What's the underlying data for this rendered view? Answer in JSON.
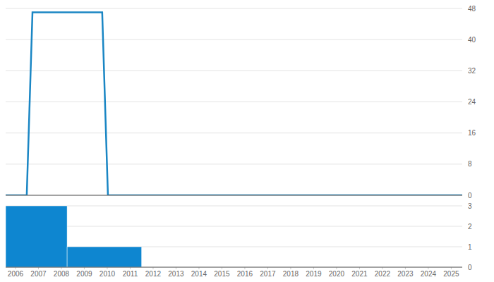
{
  "chart_data": [
    {
      "type": "line",
      "x": [
        2005.57,
        2006.49,
        2006.74,
        2009.78,
        2010.03,
        2025.48
      ],
      "values": [
        0,
        0,
        47,
        47,
        0,
        0
      ],
      "color": "#1a86c4",
      "xlim": [
        2005.57,
        2025.48
      ],
      "ylim": [
        0,
        48
      ],
      "yticks": [
        0,
        8,
        16,
        24,
        32,
        40,
        48
      ],
      "grid": true,
      "tick_labels": "y"
    },
    {
      "type": "histogram",
      "bins": [
        2005.57,
        2008.25,
        2011.5
      ],
      "counts": [
        3,
        1
      ],
      "color": "#0e86d0",
      "xlim": [
        2005.57,
        2025.48
      ],
      "xticks": [
        2006,
        2007,
        2008,
        2009,
        2010,
        2011,
        2012,
        2013,
        2014,
        2015,
        2016,
        2017,
        2018,
        2019,
        2020,
        2021,
        2022,
        2023,
        2024,
        2025
      ],
      "ylim": [
        0,
        3
      ],
      "yticks": [
        0,
        1,
        2,
        3
      ],
      "grid": true
    }
  ]
}
